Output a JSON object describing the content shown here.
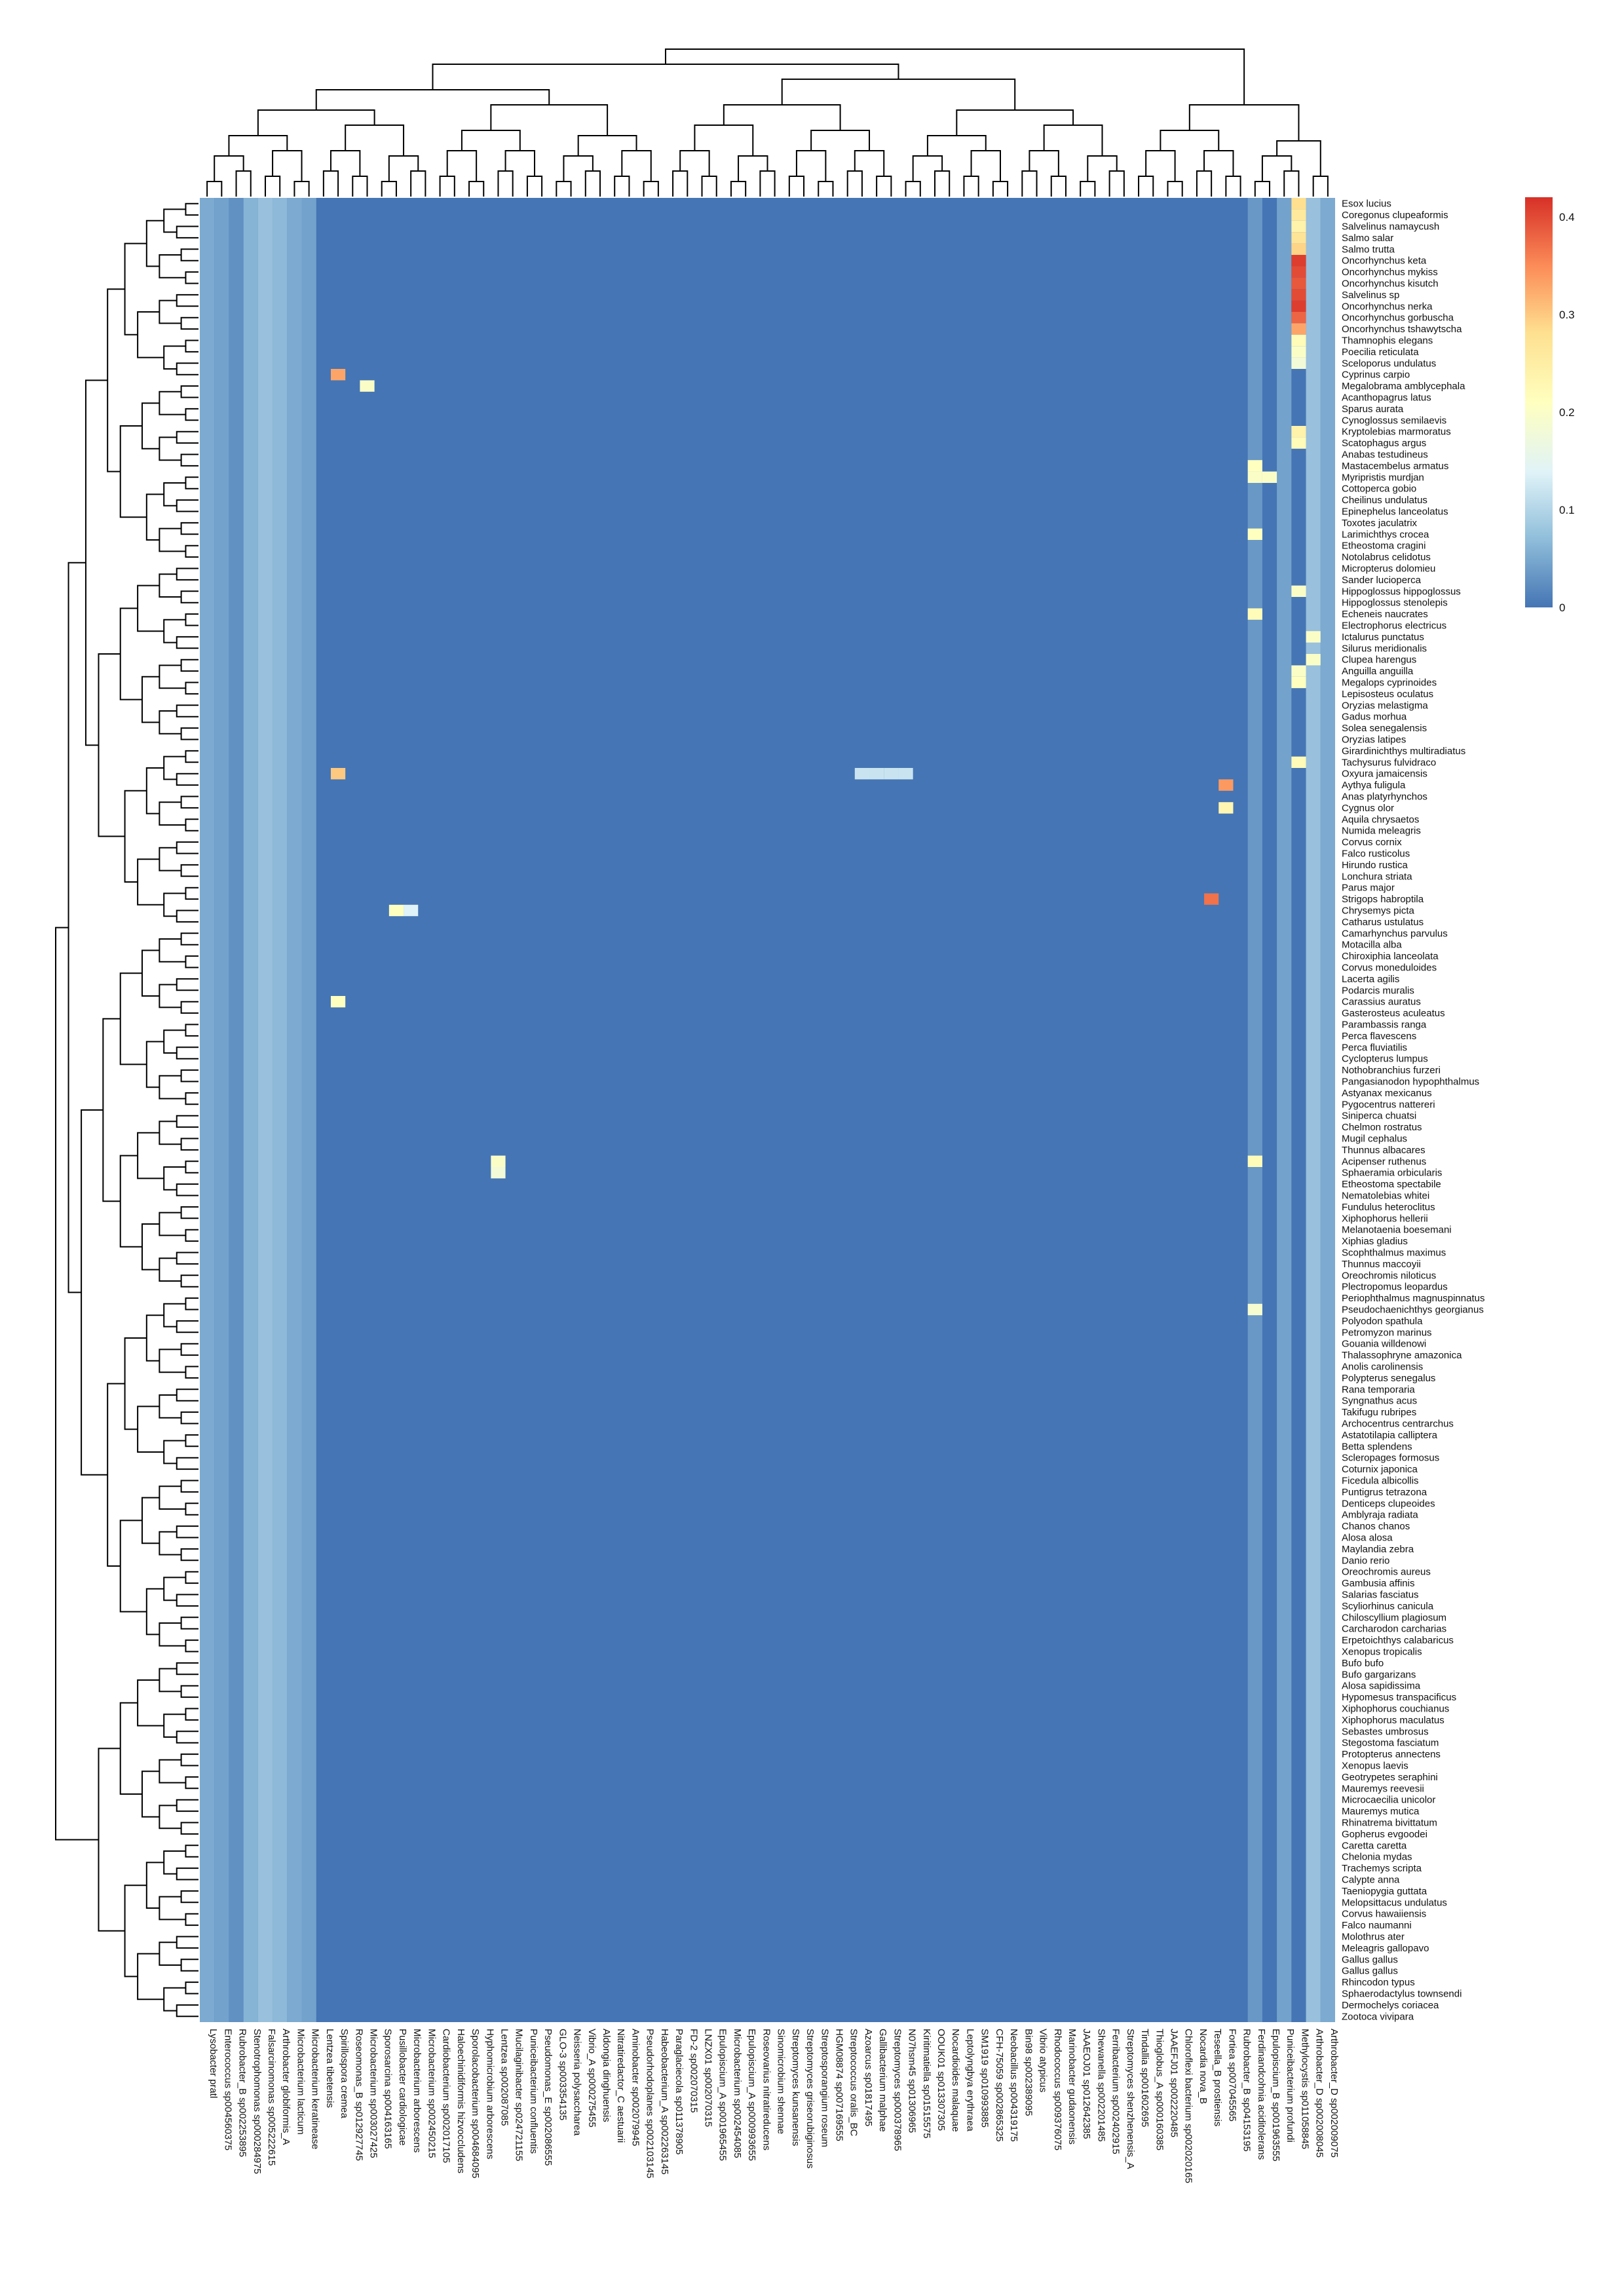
{
  "chart_data": {
    "type": "heatmap",
    "title": "",
    "xlabel": "",
    "ylabel": "",
    "clustered": true,
    "row_dendrogram": "left",
    "column_dendrogram": "top",
    "grid": false,
    "legend": "colorbar top-right",
    "color_scale": {
      "min": 0,
      "max": 0.42,
      "ticks": [
        "0",
        "0.1",
        "0.2",
        "0.3",
        "0.4"
      ],
      "tick_values": [
        0,
        0.1,
        0.2,
        0.3,
        0.4
      ],
      "colors": [
        "#4575b4",
        "#91bfdb",
        "#e0f3f8",
        "#ffffbf",
        "#fee090",
        "#fc8d59",
        "#d73027"
      ]
    },
    "columns": [
      "Lysobacter pratl",
      "Enterococcus sp004560375",
      "Rubrobacter_B sp002253895",
      "Stenotrophomonas sp000284975",
      "Falsarcinomonas sp005222615",
      "Arthrobacter globiformis_A",
      "Microbacterium lacticum",
      "Microbacterium keratinease",
      "Lentzea tibetensis",
      "Spirillospora cremea",
      "Roseomonas_B sp012927745",
      "Microbacterium sp003027425",
      "Sporosarcina sp004163165",
      "Pusillobacter cardiologicae",
      "Microbacterium arborescens",
      "Microbacterium sp002450215",
      "Cardiobacterium sp002017105",
      "Haloechinidiformis hizvoccludens",
      "Sporolacobacterium sp004684095",
      "Hyphomicrobium arborescens",
      "Lentzea sp002087085",
      "Mucilaginibacter sp024721155",
      "Puniceibacterium confluentis",
      "Pseudomonas_E sp002086555",
      "GLO-3 sp003354135",
      "Neisseria polysaccharea",
      "Vibrio_A sp000275455",
      "Aldongia dinghuensis",
      "Nitratiredactor_C aestuarii",
      "Aminobacter sp002079945",
      "Pseudorhodoplanes sp002103145",
      "Habeobacterium_A sp002263145",
      "Paraglaciecola sp011378905",
      "FD-2 sp002070315",
      "LNZX01 sp002070315",
      "Epulopiscium_A sp001965455",
      "Microbacterium sp002454085",
      "Epulopiscium_A sp000993655",
      "Roseovarius nitratireducens",
      "Sinomicrobium shennae",
      "Streptomyces kunsanensis",
      "Streptomyces griseorubiginosus",
      "Streptosporangium roseum",
      "HGM08874 sp007169555",
      "Streptococcus oralis_BC",
      "Azoarcus sp01817495",
      "Gallibacterium malphae",
      "Streptomyces sp000378965",
      "N07hsm45 sp01306965",
      "Kiritimatiella sp01515575",
      "OOUK01 sp013307305",
      "Nocardioides malaquae",
      "Leptolyngbya erythraea",
      "SM1919 sp010993885",
      "CFH-75059 sp002865325",
      "Neobacillus sp004319175",
      "Bin98 sp002389095",
      "Vibrio atypicus",
      "Rhodococcus sp009376075",
      "Marinobacter gudaonensis",
      "JAAEOJ01 sp012642385",
      "Shewanella sp002201485",
      "Ferribacterium sp002402915",
      "Streptomyces shenzhenensis_A",
      "Tindallia sp001602695",
      "Thioglobus_A sp000160385",
      "JAAEFJ01 sp002220485",
      "Chloroflexi bacterium sp002020165",
      "Nocardia nova_B",
      "Teseella_B prostiensis",
      "Fortiea sp007045565",
      "Rubrobacter_B sp04153195",
      "Ferdinandcohnia aciditolerans",
      "Epulopiscium_B sp001963555",
      "Puniceibacterium profundi",
      "Methylocystis sp011058845",
      "Arthrobacter_D sp002008045",
      "Arthrobacter_D sp002009075"
    ],
    "rows": [
      "Esox lucius",
      "Coregonus clupeaformis",
      "Salvelinus namaycush",
      "Salmo salar",
      "Salmo trutta",
      "Oncorhynchus keta",
      "Oncorhynchus mykiss",
      "Oncorhynchus kisutch",
      "Salvelinus sp",
      "Oncorhynchus nerka",
      "Oncorhynchus gorbuscha",
      "Oncorhynchus tshawytscha",
      "Thamnophis elegans",
      "Poecilia reticulata",
      "Sceloporus undulatus",
      "Cyprinus carpio",
      "Megalobrama amblycephala",
      "Acanthopagrus latus",
      "Sparus aurata",
      "Cynoglossus semilaevis",
      "Kryptolebias marmoratus",
      "Scatophagus argus",
      "Anabas testudineus",
      "Mastacembelus armatus",
      "Myripristis murdjan",
      "Cottoperca gobio",
      "Cheilinus undulatus",
      "Epinephelus lanceolatus",
      "Toxotes jaculatrix",
      "Larimichthys crocea",
      "Etheostoma cragini",
      "Notolabrus celidotus",
      "Micropterus dolomieu",
      "Sander lucioperca",
      "Hippoglossus hippoglossus",
      "Hippoglossus stenolepis",
      "Echeneis naucrates",
      "Electrophorus electricus",
      "Ictalurus punctatus",
      "Silurus meridionalis",
      "Clupea harengus",
      "Anguilla anguilla",
      "Megalops cyprinoides",
      "Lepisosteus oculatus",
      "Oryzias melastigma",
      "Gadus morhua",
      "Solea senegalensis",
      "Oryzias latipes",
      "Girardinichthys multiradiatus",
      "Tachysurus fulvidraco",
      "Oxyura jamaicensis",
      "Aythya fuligula",
      "Anas platyrhynchos",
      "Cygnus olor",
      "Aquila chrysaetos",
      "Numida meleagris",
      "Corvus cornix",
      "Falco rusticolus",
      "Hirundo rustica",
      "Lonchura striata",
      "Parus major",
      "Strigops habroptila",
      "Chrysemys picta",
      "Catharus ustulatus",
      "Camarhynchus parvulus",
      "Motacilla alba",
      "Chiroxiphia lanceolata",
      "Corvus moneduloides",
      "Lacerta agilis",
      "Podarcis muralis",
      "Carassius auratus",
      "Gasterosteus aculeatus",
      "Parambassis ranga",
      "Perca flavescens",
      "Perca fluviatilis",
      "Cyclopterus lumpus",
      "Nothobranchius furzeri",
      "Pangasianodon hypophthalmus",
      "Astyanax mexicanus",
      "Pygocentrus nattereri",
      "Siniperca chuatsi",
      "Chelmon rostratus",
      "Mugil cephalus",
      "Thunnus albacares",
      "Acipenser ruthenus",
      "Sphaeramia orbicularis",
      "Etheostoma spectabile",
      "Nematolebias whitei",
      "Fundulus heteroclitus",
      "Xiphophorus hellerii",
      "Melanotaenia boesemani",
      "Xiphias gladius",
      "Scophthalmus maximus",
      "Thunnus maccoyii",
      "Oreochromis niloticus",
      "Plectropomus leopardus",
      "Periophthalmus magnuspinnatus",
      "Pseudochaenichthys georgianus",
      "Polyodon spathula",
      "Petromyzon marinus",
      "Gouania willdenowi",
      "Thalassophryne amazonica",
      "Anolis carolinensis",
      "Polypterus senegalus",
      "Rana temporaria",
      "Syngnathus acus",
      "Takifugu rubripes",
      "Archocentrus centrarchus",
      "Astatotilapia calliptera",
      "Betta splendens",
      "Scleropages formosus",
      "Coturnix japonica",
      "Ficedula albicollis",
      "Puntigrus tetrazona",
      "Denticeps clupeoides",
      "Amblyraja radiata",
      "Chanos chanos",
      "Alosa alosa",
      "Maylandia zebra",
      "Danio rerio",
      "Oreochromis aureus",
      "Gambusia affinis",
      "Salarias fasciatus",
      "Scyliorhinus canicula",
      "Chiloscyllium plagiosum",
      "Carcharodon carcharias",
      "Erpetoichthys calabaricus",
      "Xenopus tropicalis",
      "Bufo bufo",
      "Bufo gargarizans",
      "Alosa sapidissima",
      "Hypomesus transpacificus",
      "Xiphophorus couchianus",
      "Xiphophorus maculatus",
      "Sebastes umbrosus",
      "Stegostoma fasciatum",
      "Protopterus annectens",
      "Xenopus laevis",
      "Geotrypetes seraphini",
      "Mauremys reevesii",
      "Microcaecilia unicolor",
      "Mauremys mutica",
      "Rhinatrema bivittatum",
      "Gopherus evgoodei",
      "Caretta caretta",
      "Chelonia mydas",
      "Trachemys scripta",
      "Calypte anna",
      "Taeniopygia guttata",
      "Melopsittacus undulatus",
      "Corvus hawaiiensis",
      "Falco naumanni",
      "Molothrus ater",
      "Meleagris gallopavo",
      "Gallus gallus",
      "Gallus gallus",
      "Rhincodon typus",
      "Sphaerodactylus townsendi",
      "Dermochelys coriacea",
      "Zootoca vivipara"
    ],
    "base_value": 0.0,
    "cells": [
      [
        0,
        75,
        0.28
      ],
      [
        1,
        75,
        0.26
      ],
      [
        2,
        75,
        0.24
      ],
      [
        3,
        75,
        0.27
      ],
      [
        4,
        75,
        0.29
      ],
      [
        5,
        75,
        0.41
      ],
      [
        6,
        75,
        0.4
      ],
      [
        7,
        75,
        0.39
      ],
      [
        8,
        75,
        0.4
      ],
      [
        9,
        75,
        0.41
      ],
      [
        10,
        75,
        0.38
      ],
      [
        11,
        75,
        0.33
      ],
      [
        12,
        75,
        0.22
      ],
      [
        13,
        75,
        0.2
      ],
      [
        14,
        75,
        0.18
      ],
      [
        15,
        9,
        0.33
      ],
      [
        16,
        11,
        0.2
      ],
      [
        20,
        75,
        0.24
      ],
      [
        21,
        75,
        0.22
      ],
      [
        23,
        72,
        0.21
      ],
      [
        24,
        72,
        0.2
      ],
      [
        24,
        73,
        0.2
      ],
      [
        29,
        72,
        0.21
      ],
      [
        34,
        75,
        0.2
      ],
      [
        36,
        72,
        0.22
      ],
      [
        38,
        76,
        0.2
      ],
      [
        40,
        76,
        0.2
      ],
      [
        41,
        75,
        0.2
      ],
      [
        42,
        75,
        0.21
      ],
      [
        49,
        75,
        0.22
      ],
      [
        50,
        9,
        0.3
      ],
      [
        50,
        45,
        0.12
      ],
      [
        50,
        46,
        0.12
      ],
      [
        50,
        47,
        0.12
      ],
      [
        50,
        48,
        0.12
      ],
      [
        51,
        70,
        0.34
      ],
      [
        53,
        70,
        0.23
      ],
      [
        61,
        69,
        0.37
      ],
      [
        62,
        13,
        0.21
      ],
      [
        62,
        14,
        0.14
      ],
      [
        70,
        9,
        0.21
      ],
      [
        84,
        20,
        0.2
      ],
      [
        84,
        72,
        0.22
      ],
      [
        85,
        20,
        0.18
      ],
      [
        97,
        72,
        0.19
      ]
    ]
  }
}
